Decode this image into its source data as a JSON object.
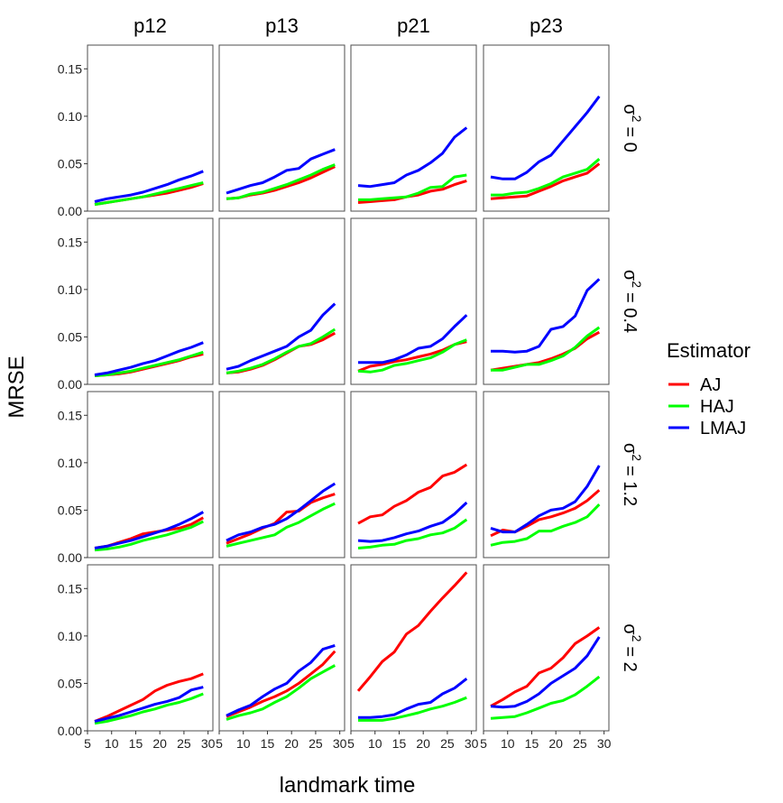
{
  "chart_data": {
    "type": "line",
    "facet_columns": [
      "p12",
      "p13",
      "p21",
      "p23"
    ],
    "facet_rows": [
      {
        "label": "σ² = 0",
        "base": "σ",
        "sup": "2",
        "value": "= 0"
      },
      {
        "label": "σ² = 0.4",
        "base": "σ",
        "sup": "2",
        "value": "= 0.4"
      },
      {
        "label": "σ² = 1.2",
        "base": "σ",
        "sup": "2",
        "value": "= 1.2"
      },
      {
        "label": "σ² = 2",
        "base": "σ",
        "sup": "2",
        "value": "= 2"
      }
    ],
    "xlabel": "landmark time",
    "ylabel": "MRSE",
    "xlim": [
      5,
      31
    ],
    "ylim": [
      0,
      0.175
    ],
    "x_ticks": [
      5,
      10,
      15,
      20,
      25,
      30
    ],
    "y_ticks": [
      "0.00",
      "0.05",
      "0.10",
      "0.15"
    ],
    "x": [
      6.5,
      9,
      11.5,
      14,
      16.5,
      19,
      21.5,
      24,
      26.5,
      29
    ],
    "legend": {
      "title": "Estimator",
      "entries": [
        {
          "name": "AJ",
          "color": "#ff0000"
        },
        {
          "name": "HAJ",
          "color": "#00ff00"
        },
        {
          "name": "LMAJ",
          "color": "#0000ff"
        }
      ]
    },
    "panels": [
      [
        {
          "AJ": [
            0.007,
            0.009,
            0.011,
            0.013,
            0.015,
            0.017,
            0.019,
            0.022,
            0.025,
            0.029
          ],
          "HAJ": [
            0.007,
            0.009,
            0.011,
            0.013,
            0.015,
            0.018,
            0.021,
            0.024,
            0.027,
            0.03
          ],
          "LMAJ": [
            0.01,
            0.013,
            0.015,
            0.017,
            0.02,
            0.024,
            0.028,
            0.033,
            0.037,
            0.042
          ]
        },
        {
          "AJ": [
            0.013,
            0.014,
            0.017,
            0.019,
            0.022,
            0.026,
            0.03,
            0.035,
            0.041,
            0.047
          ],
          "HAJ": [
            0.013,
            0.014,
            0.018,
            0.02,
            0.024,
            0.028,
            0.033,
            0.038,
            0.044,
            0.049
          ],
          "LMAJ": [
            0.019,
            0.023,
            0.027,
            0.03,
            0.036,
            0.043,
            0.045,
            0.055,
            0.06,
            0.065
          ]
        },
        {
          "AJ": [
            0.009,
            0.01,
            0.011,
            0.012,
            0.015,
            0.017,
            0.021,
            0.023,
            0.028,
            0.032
          ],
          "HAJ": [
            0.012,
            0.012,
            0.013,
            0.014,
            0.015,
            0.019,
            0.025,
            0.026,
            0.036,
            0.038
          ],
          "LMAJ": [
            0.027,
            0.026,
            0.028,
            0.03,
            0.038,
            0.043,
            0.051,
            0.061,
            0.078,
            0.088
          ]
        },
        {
          "AJ": [
            0.013,
            0.014,
            0.015,
            0.016,
            0.021,
            0.026,
            0.032,
            0.036,
            0.04,
            0.05
          ],
          "HAJ": [
            0.017,
            0.017,
            0.019,
            0.02,
            0.024,
            0.029,
            0.036,
            0.04,
            0.044,
            0.055
          ],
          "LMAJ": [
            0.036,
            0.034,
            0.034,
            0.041,
            0.052,
            0.059,
            0.074,
            0.089,
            0.104,
            0.121
          ]
        }
      ],
      [
        {
          "AJ": [
            0.009,
            0.01,
            0.011,
            0.013,
            0.016,
            0.019,
            0.022,
            0.025,
            0.029,
            0.032
          ],
          "HAJ": [
            0.009,
            0.01,
            0.012,
            0.014,
            0.017,
            0.02,
            0.023,
            0.026,
            0.03,
            0.034
          ],
          "LMAJ": [
            0.01,
            0.012,
            0.015,
            0.018,
            0.022,
            0.025,
            0.03,
            0.035,
            0.039,
            0.044
          ]
        },
        {
          "AJ": [
            0.012,
            0.013,
            0.016,
            0.02,
            0.026,
            0.033,
            0.04,
            0.042,
            0.047,
            0.054
          ],
          "HAJ": [
            0.012,
            0.014,
            0.017,
            0.021,
            0.027,
            0.034,
            0.04,
            0.043,
            0.05,
            0.058
          ],
          "LMAJ": [
            0.016,
            0.019,
            0.025,
            0.03,
            0.035,
            0.04,
            0.05,
            0.057,
            0.073,
            0.085
          ]
        },
        {
          "AJ": [
            0.014,
            0.019,
            0.021,
            0.024,
            0.026,
            0.029,
            0.032,
            0.036,
            0.042,
            0.045
          ],
          "HAJ": [
            0.014,
            0.013,
            0.015,
            0.02,
            0.022,
            0.025,
            0.028,
            0.034,
            0.042,
            0.047
          ],
          "LMAJ": [
            0.023,
            0.023,
            0.023,
            0.026,
            0.031,
            0.038,
            0.04,
            0.048,
            0.061,
            0.073
          ]
        },
        {
          "AJ": [
            0.015,
            0.017,
            0.019,
            0.021,
            0.023,
            0.027,
            0.032,
            0.038,
            0.048,
            0.055
          ],
          "HAJ": [
            0.015,
            0.015,
            0.018,
            0.021,
            0.021,
            0.025,
            0.03,
            0.039,
            0.051,
            0.06
          ],
          "LMAJ": [
            0.035,
            0.035,
            0.034,
            0.035,
            0.04,
            0.058,
            0.061,
            0.072,
            0.099,
            0.111
          ]
        }
      ],
      [
        {
          "AJ": [
            0.01,
            0.012,
            0.016,
            0.02,
            0.025,
            0.027,
            0.029,
            0.031,
            0.035,
            0.042
          ],
          "HAJ": [
            0.008,
            0.009,
            0.011,
            0.014,
            0.018,
            0.021,
            0.024,
            0.028,
            0.032,
            0.038
          ],
          "LMAJ": [
            0.01,
            0.012,
            0.015,
            0.018,
            0.022,
            0.026,
            0.03,
            0.035,
            0.041,
            0.048
          ]
        },
        {
          "AJ": [
            0.015,
            0.02,
            0.025,
            0.031,
            0.036,
            0.048,
            0.049,
            0.058,
            0.063,
            0.067
          ],
          "HAJ": [
            0.012,
            0.015,
            0.018,
            0.021,
            0.024,
            0.032,
            0.037,
            0.044,
            0.051,
            0.057
          ],
          "LMAJ": [
            0.018,
            0.024,
            0.027,
            0.032,
            0.035,
            0.041,
            0.05,
            0.06,
            0.07,
            0.078
          ]
        },
        {
          "AJ": [
            0.036,
            0.043,
            0.045,
            0.054,
            0.06,
            0.069,
            0.074,
            0.086,
            0.09,
            0.098
          ],
          "HAJ": [
            0.01,
            0.011,
            0.013,
            0.014,
            0.018,
            0.02,
            0.024,
            0.026,
            0.031,
            0.04
          ],
          "LMAJ": [
            0.018,
            0.017,
            0.018,
            0.021,
            0.025,
            0.028,
            0.033,
            0.037,
            0.046,
            0.058
          ]
        },
        {
          "AJ": [
            0.023,
            0.029,
            0.027,
            0.033,
            0.04,
            0.043,
            0.047,
            0.052,
            0.06,
            0.071
          ],
          "HAJ": [
            0.013,
            0.016,
            0.017,
            0.02,
            0.028,
            0.028,
            0.033,
            0.037,
            0.043,
            0.056
          ],
          "LMAJ": [
            0.031,
            0.027,
            0.027,
            0.035,
            0.044,
            0.05,
            0.052,
            0.059,
            0.075,
            0.097
          ]
        }
      ],
      [
        {
          "AJ": [
            0.01,
            0.015,
            0.021,
            0.027,
            0.033,
            0.042,
            0.048,
            0.052,
            0.055,
            0.06
          ],
          "HAJ": [
            0.008,
            0.01,
            0.013,
            0.016,
            0.02,
            0.023,
            0.027,
            0.03,
            0.034,
            0.039
          ],
          "LMAJ": [
            0.01,
            0.013,
            0.016,
            0.02,
            0.024,
            0.028,
            0.031,
            0.035,
            0.043,
            0.046
          ]
        },
        {
          "AJ": [
            0.015,
            0.02,
            0.025,
            0.031,
            0.036,
            0.042,
            0.05,
            0.06,
            0.07,
            0.084
          ],
          "HAJ": [
            0.012,
            0.016,
            0.019,
            0.023,
            0.03,
            0.036,
            0.045,
            0.055,
            0.062,
            0.069
          ],
          "LMAJ": [
            0.016,
            0.022,
            0.027,
            0.036,
            0.044,
            0.05,
            0.063,
            0.072,
            0.086,
            0.09
          ]
        },
        {
          "AJ": [
            0.042,
            0.057,
            0.073,
            0.083,
            0.102,
            0.111,
            0.126,
            0.14,
            0.153,
            0.167
          ],
          "HAJ": [
            0.011,
            0.011,
            0.011,
            0.013,
            0.016,
            0.019,
            0.023,
            0.026,
            0.03,
            0.035
          ],
          "LMAJ": [
            0.014,
            0.014,
            0.015,
            0.017,
            0.023,
            0.028,
            0.03,
            0.039,
            0.045,
            0.055
          ]
        },
        {
          "AJ": [
            0.026,
            0.033,
            0.041,
            0.047,
            0.061,
            0.066,
            0.077,
            0.092,
            0.1,
            0.109
          ],
          "HAJ": [
            0.013,
            0.014,
            0.015,
            0.019,
            0.024,
            0.029,
            0.032,
            0.038,
            0.047,
            0.057
          ],
          "LMAJ": [
            0.026,
            0.025,
            0.026,
            0.031,
            0.039,
            0.05,
            0.058,
            0.066,
            0.079,
            0.099
          ]
        }
      ]
    ]
  }
}
